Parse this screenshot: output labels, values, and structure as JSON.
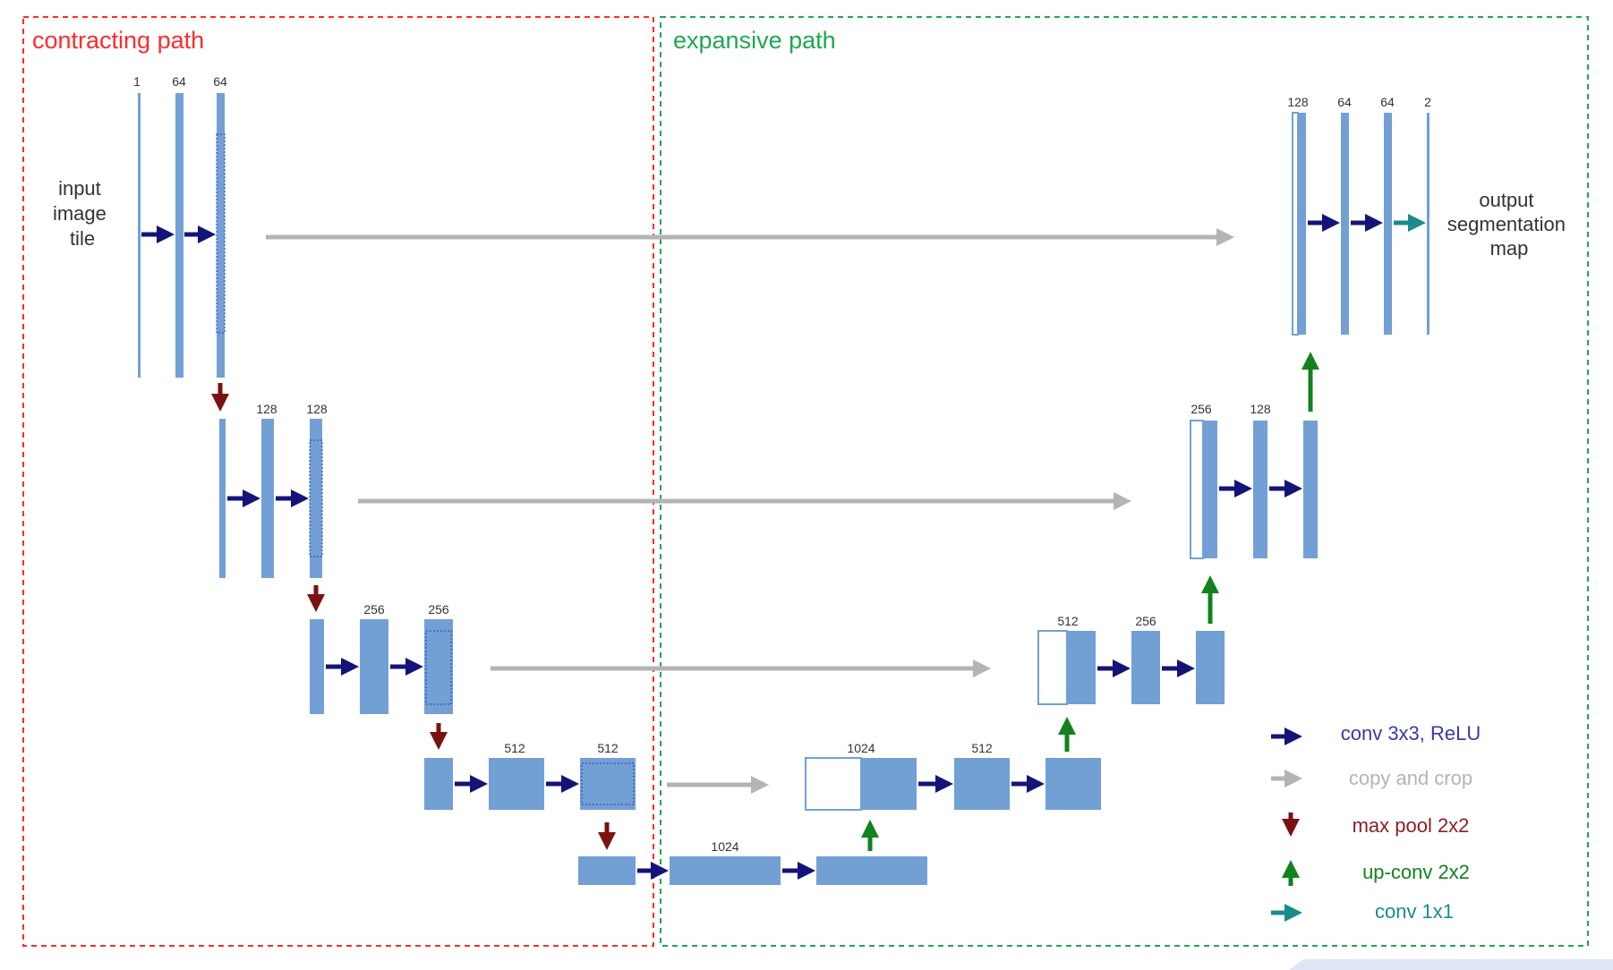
{
  "regions": {
    "contracting": {
      "label": "contracting path",
      "color": "#ff2b2b"
    },
    "expansive": {
      "label": "expansive path",
      "color": "#1fa84f"
    }
  },
  "input_label": [
    "input",
    "image",
    "tile"
  ],
  "output_label": [
    "output",
    "segmentation",
    "map"
  ],
  "channels": {
    "l1": [
      "1",
      "64",
      "64"
    ],
    "l2": [
      "128",
      "128"
    ],
    "l3": [
      "256",
      "256"
    ],
    "l4": [
      "512",
      "512"
    ],
    "bottom": [
      "1024"
    ],
    "u4": [
      "1024",
      "512"
    ],
    "u3": [
      "512",
      "256"
    ],
    "u2": [
      "256",
      "128"
    ],
    "u1": [
      "128",
      "64",
      "64",
      "2"
    ]
  },
  "legend": [
    {
      "label": "conv 3x3, ReLU",
      "icon": "right-arrow-icon",
      "color": "#141478"
    },
    {
      "label": "copy and crop",
      "icon": "right-arrow-icon",
      "color": "#b4b4b4"
    },
    {
      "label": "max pool 2x2",
      "icon": "down-arrow-icon",
      "color": "#7a1212"
    },
    {
      "label": "up-conv 2x2",
      "icon": "up-arrow-icon",
      "color": "#12821e"
    },
    {
      "label": "conv 1x1",
      "icon": "right-arrow-icon",
      "color": "#1a8c8c"
    }
  ],
  "colors": {
    "feature_map": "#72a0d4",
    "conv": "#141478",
    "copy": "#b4b4b4",
    "pool": "#7a1212",
    "upconv": "#12821e",
    "conv1x1": "#1a8c8c"
  }
}
